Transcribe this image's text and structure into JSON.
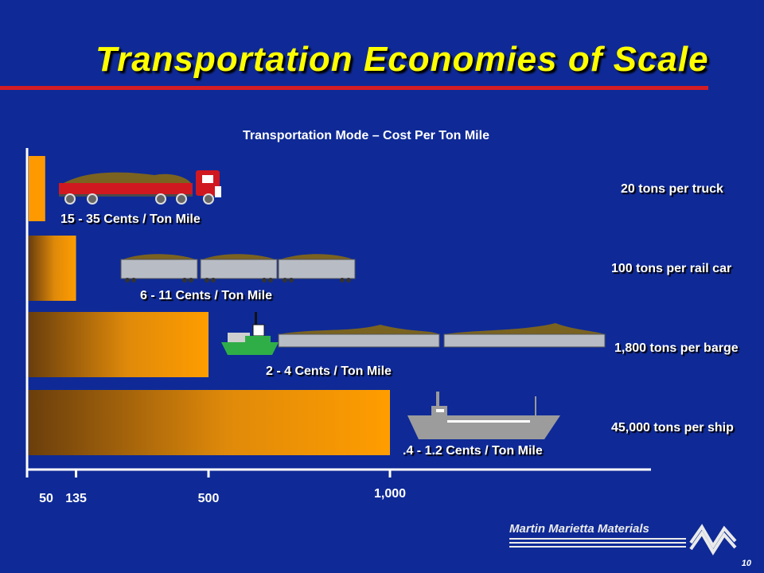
{
  "slide": {
    "title": "Transportation Economies of Scale",
    "page_number": "10",
    "logo_text": "Martin Marietta Materials",
    "background": "#0f2a96",
    "title_color": "#ffff00",
    "rule_color": "#d41c25"
  },
  "chart_data": {
    "type": "bar",
    "orientation": "horizontal",
    "title": "Transportation Mode – Cost Per Ton Mile",
    "bar_color": "#ff9900",
    "xlim": [
      0,
      1000
    ],
    "x_ticks": [
      {
        "value": 50,
        "label": "50"
      },
      {
        "value": 135,
        "label": "135"
      },
      {
        "value": 500,
        "label": "500"
      },
      {
        "value": 1000,
        "label": "1,000"
      }
    ],
    "bars": [
      {
        "mode": "truck",
        "value": 50,
        "capacity_label": "20 tons per truck",
        "cost_label": "15 - 35 Cents /  Ton Mile",
        "icon": "truck-icon"
      },
      {
        "mode": "rail",
        "value": 135,
        "capacity_label": "100 tons per rail car",
        "cost_label": "6 - 11 Cents /  Ton Mile",
        "icon": "rail-car-icon"
      },
      {
        "mode": "barge",
        "value": 500,
        "capacity_label": "1,800 tons per barge",
        "cost_label": "2 - 4 Cents /  Ton Mile",
        "icon": "barge-icon"
      },
      {
        "mode": "ship",
        "value": 1000,
        "capacity_label": "45,000 tons per ship",
        "cost_label": ".4 - 1.2 Cents /  Ton Mile",
        "icon": "ship-icon"
      }
    ]
  }
}
